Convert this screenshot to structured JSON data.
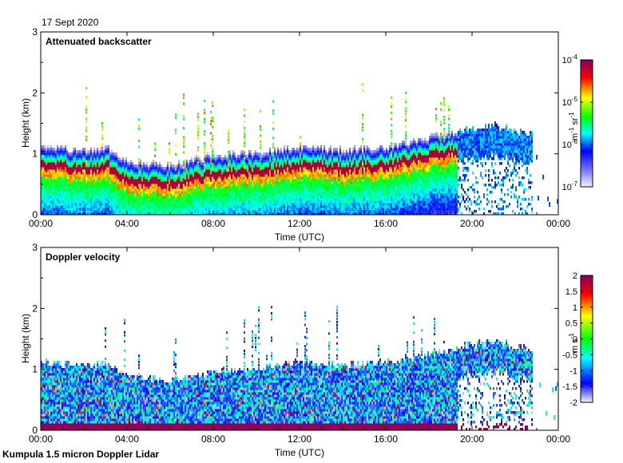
{
  "figure": {
    "date": "17 Sept 2020",
    "footer": "Kumpula 1.5 micron Doppler Lidar"
  },
  "chart_data": [
    {
      "type": "heatmap",
      "title": "Attenuated backscatter",
      "xlabel": "Time (UTC)",
      "ylabel": "Height (km)",
      "xlim": [
        0,
        24
      ],
      "ylim": [
        0,
        3
      ],
      "xticks": [
        "00:00",
        "04:00",
        "08:00",
        "12:00",
        "16:00",
        "20:00",
        "00:00"
      ],
      "yticks": [
        "0",
        "1",
        "2",
        "3"
      ],
      "colorbar": {
        "label_base": "m",
        "label_exp1": "-1",
        "label_mid": " sr",
        "label_exp2": "-1",
        "scale": "log",
        "range": [
          1e-07,
          0.0001
        ],
        "ticks": [
          {
            "base": "10",
            "exp": "-4",
            "value": -4
          },
          {
            "base": "10",
            "exp": "-5",
            "value": -5
          },
          {
            "base": "10",
            "exp": "-6",
            "value": -6
          },
          {
            "base": "10",
            "exp": "-7",
            "value": -7
          }
        ]
      },
      "layer_profile": {
        "description_hours": [
          0,
          2,
          3,
          4,
          6,
          8,
          10,
          12,
          14,
          16,
          18,
          19.5,
          21,
          22.7
        ],
        "layer_top_km": [
          0.85,
          0.8,
          0.85,
          0.6,
          0.55,
          0.7,
          0.75,
          0.85,
          0.8,
          0.85,
          1.0,
          1.1,
          1.2,
          1.05
        ]
      }
    },
    {
      "type": "heatmap",
      "title": "Doppler velocity",
      "xlabel": "Time (UTC)",
      "ylabel": "Height (km)",
      "xlim": [
        0,
        24
      ],
      "ylim": [
        0,
        3
      ],
      "xticks": [
        "00:00",
        "04:00",
        "08:00",
        "12:00",
        "16:00",
        "20:00",
        "00:00"
      ],
      "yticks": [
        "0",
        "1",
        "2",
        "3"
      ],
      "colorbar": {
        "label_base": "m s",
        "label_exp1": "-1",
        "scale": "linear",
        "range": [
          -2,
          2
        ],
        "ticks": [
          {
            "label": "2",
            "value": 2
          },
          {
            "label": "1.5",
            "value": 1.5
          },
          {
            "label": "1",
            "value": 1
          },
          {
            "label": "0.5",
            "value": 0.5
          },
          {
            "label": "0",
            "value": 0
          },
          {
            "label": "-0.5",
            "value": -0.5
          },
          {
            "label": "-1",
            "value": -1
          },
          {
            "label": "-1.5",
            "value": -1.5
          },
          {
            "label": "-2",
            "value": -2
          }
        ]
      }
    }
  ],
  "colors": {
    "jet_stops": [
      "#f0f0ff",
      "#0000ff",
      "#00ffff",
      "#00ff00",
      "#ffff00",
      "#ff0000",
      "#800060"
    ]
  }
}
